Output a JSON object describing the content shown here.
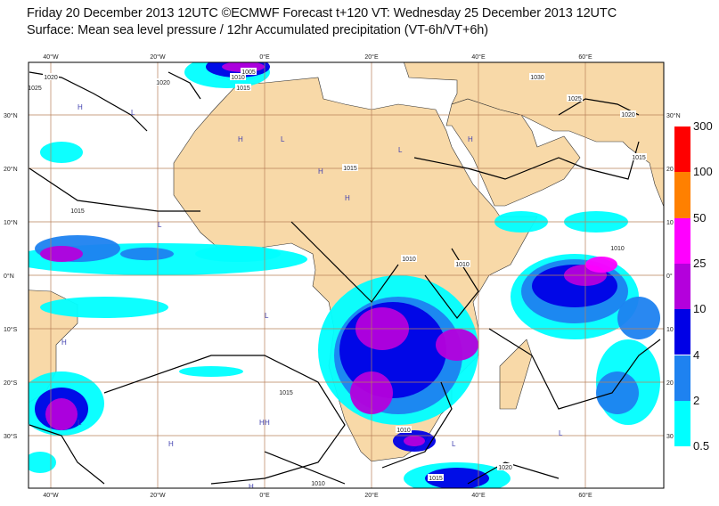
{
  "header": {
    "title": "Friday 20 December 2013 12UTC ©ECMWF Forecast t+120 VT: Wednesday 25 December 2013 12UTC",
    "subtitle": "Surface: Mean sea level pressure / 12hr Accumulated precipitation (VT-6h/VT+6h)"
  },
  "map": {
    "lon_labels": [
      "40°W",
      "20°W",
      "0°E",
      "20°E",
      "40°E",
      "60°E"
    ],
    "lat_labels": [
      "30°N",
      "20°N",
      "10°N",
      "0°N",
      "10°S",
      "20°S",
      "30°S"
    ],
    "right_lat_labels": [
      "30°N",
      "20",
      "10",
      "0°",
      "10",
      "20",
      "30"
    ],
    "colors": {
      "land": "#f8d9a8",
      "ocean": "#ffffff",
      "grid": "#b8805a",
      "isobar": "#000000"
    },
    "isobar_labels": [
      "1020",
      "1025",
      "1020",
      "1010",
      "1015",
      "1005",
      "1015",
      "1015",
      "1030",
      "1025",
      "1020",
      "1015",
      "1010",
      "1010",
      "1010",
      "1015",
      "1010",
      "1010",
      "1015",
      "1020"
    ],
    "pressure_centres": [
      "H",
      "L",
      "H",
      "L",
      "H",
      "H",
      "L",
      "H",
      "L",
      "H",
      "L",
      "L",
      "H",
      "L",
      "H",
      "H",
      "L",
      "H"
    ]
  },
  "legend": {
    "title": "",
    "levels": [
      "300",
      "100",
      "50",
      "25",
      "10",
      "4",
      "2",
      "0.5"
    ],
    "colors": [
      "#ff0000",
      "#ff8000",
      "#ff00ff",
      "#b400dc",
      "#0000e6",
      "#1e82f0",
      "#00ffff"
    ]
  }
}
